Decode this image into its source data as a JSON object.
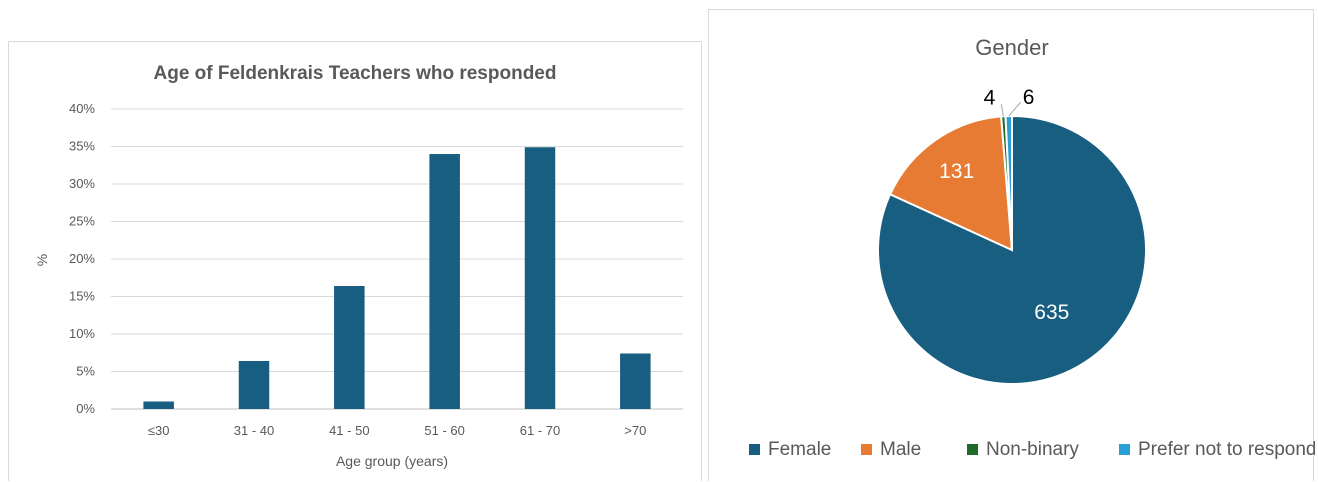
{
  "chart_data": [
    {
      "type": "bar",
      "title": "Age of Feldenkrais Teachers who responded",
      "xlabel": "Age group (years)",
      "ylabel": "%",
      "categories": [
        "≤30",
        "31 - 40",
        "41 - 50",
        "51 - 60",
        "61 - 70",
        ">70"
      ],
      "values": [
        1,
        6.4,
        16.4,
        34,
        34.9,
        7.4
      ],
      "ylim": [
        0,
        40
      ],
      "yticks": [
        "0%",
        "5%",
        "10%",
        "15%",
        "20%",
        "25%",
        "30%",
        "35%",
        "40%"
      ],
      "grid": true,
      "color": "#175e80"
    },
    {
      "type": "pie",
      "title": "Gender",
      "categories": [
        "Female",
        "Male",
        "Non-binary",
        "Prefer not to respond"
      ],
      "values": [
        635,
        131,
        4,
        6
      ],
      "labels": [
        "635",
        "131",
        "4",
        "6"
      ],
      "colors": [
        "#175e80",
        "#e77b33",
        "#1e6b2c",
        "#2a9fd6"
      ],
      "legend": "bottom"
    }
  ]
}
